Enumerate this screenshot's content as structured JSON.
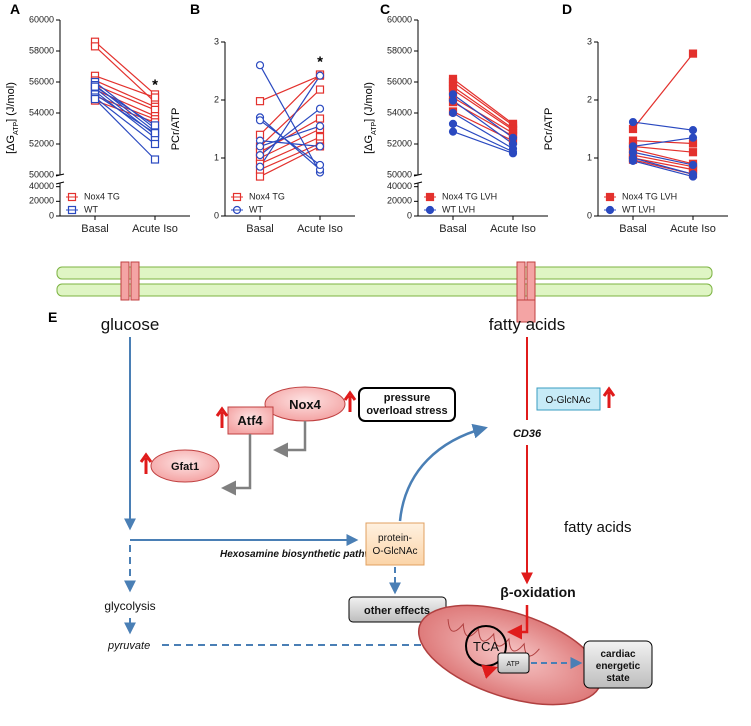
{
  "chart_data": [
    {
      "type": "paired",
      "panel": "A",
      "categories": [
        "Basal",
        "Acute Iso"
      ],
      "y_label": [
        "[ΔG",
        "ATP",
        "] (J/mol)"
      ],
      "ylim": [
        50000,
        60000
      ],
      "yticks": [
        50000,
        52000,
        54000,
        56000,
        58000,
        60000
      ],
      "ylim_lower": [
        0,
        45000
      ],
      "yticks_lower": [
        0,
        20000,
        40000
      ],
      "series": [
        {
          "name": "Nox4 TG",
          "color": "#e3312d",
          "marker": "square",
          "filled": false,
          "values": [
            [
              58600,
              55200
            ],
            [
              58300,
              54700
            ],
            [
              56400,
              55000
            ],
            [
              56100,
              54400
            ],
            [
              55800,
              54200
            ],
            [
              55500,
              53800
            ],
            [
              55100,
              53600
            ],
            [
              54800,
              53400
            ]
          ]
        },
        {
          "name": "WT",
          "color": "#2a49c0",
          "marker": "square",
          "filled": false,
          "values": [
            [
              56000,
              53000
            ],
            [
              55800,
              52800
            ],
            [
              55600,
              52600
            ],
            [
              55400,
              52400
            ],
            [
              55200,
              52700
            ],
            [
              55000,
              52000
            ],
            [
              54900,
              51000
            ],
            [
              55700,
              53200
            ]
          ]
        }
      ],
      "annotations": [
        {
          "text": "*",
          "category": "Acute Iso",
          "y": 55900
        }
      ]
    },
    {
      "type": "paired",
      "panel": "B",
      "categories": [
        "Basal",
        "Acute Iso"
      ],
      "y_label": [
        "PCr/ATP"
      ],
      "ylim": [
        0,
        3
      ],
      "yticks": [
        0,
        1,
        2,
        3
      ],
      "series": [
        {
          "name": "Nox4 TG",
          "color": "#e3312d",
          "marker": "square",
          "filled": false,
          "values": [
            [
              1.98,
              2.42
            ],
            [
              1.4,
              2.44
            ],
            [
              1.2,
              2.18
            ],
            [
              1.1,
              1.68
            ],
            [
              1.0,
              1.5
            ],
            [
              0.9,
              1.36
            ],
            [
              0.8,
              1.25
            ],
            [
              0.68,
              1.2
            ]
          ]
        },
        {
          "name": "WT",
          "color": "#2a49c0",
          "marker": "circle",
          "filled": false,
          "values": [
            [
              2.6,
              0.75
            ],
            [
              1.7,
              0.8
            ],
            [
              1.65,
              0.88
            ],
            [
              1.3,
              1.2
            ],
            [
              1.2,
              1.55
            ],
            [
              1.05,
              1.85
            ],
            [
              0.85,
              2.42
            ]
          ]
        }
      ],
      "annotations": [
        {
          "text": "*",
          "category": "Acute Iso",
          "y": 2.68
        }
      ]
    },
    {
      "type": "paired",
      "panel": "C",
      "categories": [
        "Basal",
        "Acute Iso"
      ],
      "y_label": [
        "[ΔG",
        "ATP",
        "] (J/mol)"
      ],
      "ylim": [
        50000,
        60000
      ],
      "yticks": [
        50000,
        52000,
        54000,
        56000,
        58000,
        60000
      ],
      "ylim_lower": [
        0,
        45000
      ],
      "yticks_lower": [
        0,
        20000,
        40000
      ],
      "series": [
        {
          "name": "Nox4 TG LVH",
          "color": "#e3312d",
          "marker": "square",
          "filled": true,
          "values": [
            [
              56200,
              53300
            ],
            [
              56000,
              53200
            ],
            [
              55700,
              53000
            ],
            [
              55500,
              52900
            ],
            [
              55000,
              52700
            ],
            [
              54700,
              52500
            ],
            [
              54100,
              52200
            ]
          ]
        },
        {
          "name": "WT LVH",
          "color": "#2a49c0",
          "marker": "circle",
          "filled": true,
          "values": [
            [
              55200,
              52400
            ],
            [
              54800,
              52000
            ],
            [
              54000,
              51700
            ],
            [
              53300,
              51500
            ],
            [
              52800,
              51400
            ]
          ]
        }
      ]
    },
    {
      "type": "paired",
      "panel": "D",
      "categories": [
        "Basal",
        "Acute Iso"
      ],
      "y_label": [
        "PCr/ATP"
      ],
      "ylim": [
        0,
        3
      ],
      "yticks": [
        0,
        1,
        2,
        3
      ],
      "series": [
        {
          "name": "Nox4 TG LVH",
          "color": "#e3312d",
          "marker": "square",
          "filled": true,
          "values": [
            [
              1.5,
              2.8
            ],
            [
              1.3,
              1.25
            ],
            [
              1.2,
              1.1
            ],
            [
              1.15,
              0.9
            ],
            [
              1.05,
              0.85
            ],
            [
              1.0,
              0.8
            ],
            [
              0.97,
              0.72
            ]
          ]
        },
        {
          "name": "WT LVH",
          "color": "#2a49c0",
          "marker": "circle",
          "filled": true,
          "values": [
            [
              1.62,
              1.48
            ],
            [
              1.2,
              1.35
            ],
            [
              1.1,
              0.88
            ],
            [
              1.0,
              0.72
            ],
            [
              0.95,
              0.68
            ]
          ]
        }
      ]
    }
  ],
  "diagram": {
    "panel": "E",
    "glucose": "glucose",
    "fatty_acids_top": "fatty acids",
    "fatty_acids_mid": "fatty acids",
    "nox4": "Nox4",
    "stress": [
      "pressure",
      "overload stress"
    ],
    "atf4": "Atf4",
    "gfat1": "Gfat1",
    "cd36": "CD36",
    "o_glcnac": "O-GlcNAc",
    "hexosamine": "Hexosamine biosynthetic pathway",
    "protein": [
      "protein-",
      "O-GlcNAc"
    ],
    "glycolysis": "glycolysis",
    "other_effects": "other effects",
    "pyruvate": "pyruvate",
    "beta_oxidation": "β-oxidation",
    "tca": "TCA",
    "atp": "ATP",
    "energetic": [
      "cardiac",
      "energetic",
      "state"
    ]
  }
}
